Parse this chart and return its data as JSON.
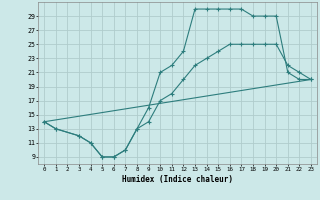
{
  "xlabel": "Humidex (Indice chaleur)",
  "background_color": "#cce8e8",
  "line_color": "#2d7d7d",
  "grid_color": "#b0cccc",
  "xlim": [
    -0.5,
    23.5
  ],
  "ylim": [
    8.0,
    31.0
  ],
  "xticks": [
    0,
    1,
    2,
    3,
    4,
    5,
    6,
    7,
    8,
    9,
    10,
    11,
    12,
    13,
    14,
    15,
    16,
    17,
    18,
    19,
    20,
    21,
    22,
    23
  ],
  "yticks": [
    9,
    11,
    13,
    15,
    17,
    19,
    21,
    23,
    25,
    27,
    29
  ],
  "line1_x": [
    0,
    1,
    3,
    4,
    5,
    6,
    7,
    8,
    9,
    10,
    11,
    12,
    13,
    14,
    15,
    16,
    17,
    18,
    19,
    20,
    21,
    22,
    23
  ],
  "line1_y": [
    14,
    13,
    12,
    11,
    9,
    9,
    10,
    13,
    16,
    21,
    22,
    24,
    30,
    30,
    30,
    30,
    30,
    29,
    29,
    29,
    21,
    20,
    20
  ],
  "line2_x": [
    0,
    1,
    3,
    4,
    5,
    6,
    7,
    8,
    9,
    10,
    11,
    12,
    13,
    14,
    15,
    16,
    17,
    18,
    19,
    20,
    21,
    22,
    23
  ],
  "line2_y": [
    14,
    13,
    12,
    11,
    9,
    9,
    10,
    13,
    14,
    17,
    18,
    20,
    22,
    23,
    24,
    25,
    25,
    25,
    25,
    25,
    22,
    21,
    20
  ],
  "line3_x": [
    0,
    23
  ],
  "line3_y": [
    14,
    20
  ]
}
